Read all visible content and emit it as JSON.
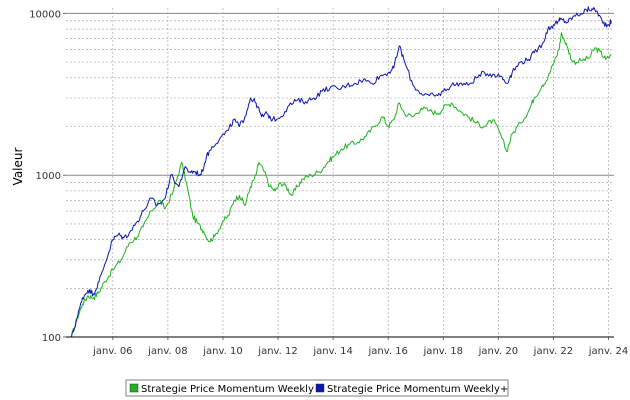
{
  "chart_data": {
    "type": "line",
    "title": "",
    "xlabel": "",
    "ylabel": "Valeur",
    "y_scale": "log",
    "ylim": [
      100,
      10800
    ],
    "xlim": [
      2004.3,
      2024.2
    ],
    "grid": true,
    "legend_position": "bottom",
    "x_tick_labels": [
      {
        "x": 2006,
        "label": "janv. 06"
      },
      {
        "x": 2008,
        "label": "janv. 08"
      },
      {
        "x": 2010,
        "label": "janv. 10"
      },
      {
        "x": 2012,
        "label": "janv. 12"
      },
      {
        "x": 2014,
        "label": "janv. 14"
      },
      {
        "x": 2016,
        "label": "janv. 16"
      },
      {
        "x": 2018,
        "label": "janv. 18"
      },
      {
        "x": 2020,
        "label": "janv. 20"
      },
      {
        "x": 2022,
        "label": "janv. 22"
      },
      {
        "x": 2024,
        "label": "janv. 24"
      }
    ],
    "y_tick_labels": [
      {
        "y": 100,
        "label": "100"
      },
      {
        "y": 1000,
        "label": "1000"
      },
      {
        "y": 10000,
        "label": "10000"
      }
    ],
    "series": [
      {
        "name": "Strategie Price Momentum Weekly",
        "color": "#1fb31f",
        "points": [
          [
            2004.5,
            100
          ],
          [
            2004.7,
            130
          ],
          [
            2004.9,
            160
          ],
          [
            2005.1,
            180
          ],
          [
            2005.3,
            175
          ],
          [
            2005.5,
            190
          ],
          [
            2005.7,
            220
          ],
          [
            2006.0,
            260
          ],
          [
            2006.3,
            300
          ],
          [
            2006.6,
            380
          ],
          [
            2006.9,
            420
          ],
          [
            2007.1,
            480
          ],
          [
            2007.4,
            600
          ],
          [
            2007.7,
            700
          ],
          [
            2007.9,
            620
          ],
          [
            2008.2,
            800
          ],
          [
            2008.5,
            1200
          ],
          [
            2008.7,
            850
          ],
          [
            2008.9,
            560
          ],
          [
            2009.1,
            500
          ],
          [
            2009.3,
            450
          ],
          [
            2009.5,
            390
          ],
          [
            2009.7,
            420
          ],
          [
            2010.0,
            520
          ],
          [
            2010.2,
            560
          ],
          [
            2010.4,
            700
          ],
          [
            2010.6,
            750
          ],
          [
            2010.8,
            650
          ],
          [
            2011.0,
            850
          ],
          [
            2011.2,
            1000
          ],
          [
            2011.3,
            1200
          ],
          [
            2011.5,
            1050
          ],
          [
            2011.7,
            850
          ],
          [
            2011.9,
            800
          ],
          [
            2012.1,
            900
          ],
          [
            2012.3,
            850
          ],
          [
            2012.5,
            750
          ],
          [
            2012.7,
            850
          ],
          [
            2012.9,
            950
          ],
          [
            2013.2,
            1000
          ],
          [
            2013.5,
            1050
          ],
          [
            2013.8,
            1200
          ],
          [
            2014.0,
            1300
          ],
          [
            2014.3,
            1450
          ],
          [
            2014.6,
            1550
          ],
          [
            2014.9,
            1600
          ],
          [
            2015.2,
            1750
          ],
          [
            2015.5,
            2000
          ],
          [
            2015.8,
            2300
          ],
          [
            2016.0,
            2000
          ],
          [
            2016.2,
            2200
          ],
          [
            2016.4,
            2800
          ],
          [
            2016.6,
            2400
          ],
          [
            2016.9,
            2300
          ],
          [
            2017.2,
            2600
          ],
          [
            2017.5,
            2500
          ],
          [
            2017.8,
            2400
          ],
          [
            2018.0,
            2600
          ],
          [
            2018.3,
            2800
          ],
          [
            2018.6,
            2500
          ],
          [
            2018.9,
            2300
          ],
          [
            2019.2,
            2100
          ],
          [
            2019.5,
            2000
          ],
          [
            2019.8,
            2200
          ],
          [
            2020.1,
            1750
          ],
          [
            2020.3,
            1400
          ],
          [
            2020.5,
            1800
          ],
          [
            2020.8,
            2100
          ],
          [
            2021.1,
            2500
          ],
          [
            2021.3,
            3000
          ],
          [
            2021.6,
            3600
          ],
          [
            2021.8,
            4000
          ],
          [
            2022.0,
            4900
          ],
          [
            2022.2,
            6000
          ],
          [
            2022.3,
            7600
          ],
          [
            2022.5,
            6200
          ],
          [
            2022.7,
            5000
          ],
          [
            2023.0,
            5100
          ],
          [
            2023.3,
            5300
          ],
          [
            2023.5,
            6100
          ],
          [
            2023.7,
            5800
          ],
          [
            2023.9,
            5200
          ],
          [
            2024.1,
            5500
          ]
        ]
      },
      {
        "name": "Strategie Price Momentum Weekly+",
        "color": "#0a16b0",
        "points": [
          [
            2004.5,
            100
          ],
          [
            2004.7,
            130
          ],
          [
            2004.9,
            175
          ],
          [
            2005.1,
            195
          ],
          [
            2005.3,
            185
          ],
          [
            2005.5,
            220
          ],
          [
            2005.7,
            280
          ],
          [
            2006.0,
            400
          ],
          [
            2006.2,
            430
          ],
          [
            2006.4,
            410
          ],
          [
            2006.6,
            440
          ],
          [
            2006.9,
            520
          ],
          [
            2007.1,
            600
          ],
          [
            2007.4,
            720
          ],
          [
            2007.6,
            650
          ],
          [
            2007.9,
            720
          ],
          [
            2008.1,
            1000
          ],
          [
            2008.4,
            850
          ],
          [
            2008.6,
            1100
          ],
          [
            2008.8,
            1050
          ],
          [
            2009.0,
            1050
          ],
          [
            2009.2,
            1000
          ],
          [
            2009.4,
            1300
          ],
          [
            2009.6,
            1500
          ],
          [
            2009.9,
            1700
          ],
          [
            2010.2,
            1900
          ],
          [
            2010.4,
            2200
          ],
          [
            2010.6,
            2000
          ],
          [
            2010.8,
            2300
          ],
          [
            2011.0,
            3000
          ],
          [
            2011.2,
            2800
          ],
          [
            2011.4,
            2300
          ],
          [
            2011.6,
            2400
          ],
          [
            2011.8,
            2200
          ],
          [
            2012.1,
            2300
          ],
          [
            2012.4,
            2700
          ],
          [
            2012.7,
            2900
          ],
          [
            2013.0,
            2850
          ],
          [
            2013.3,
            3000
          ],
          [
            2013.6,
            3300
          ],
          [
            2013.9,
            3500
          ],
          [
            2014.2,
            3400
          ],
          [
            2014.5,
            3600
          ],
          [
            2014.8,
            3700
          ],
          [
            2015.1,
            3900
          ],
          [
            2015.4,
            3700
          ],
          [
            2015.7,
            4100
          ],
          [
            2016.0,
            4300
          ],
          [
            2016.2,
            4600
          ],
          [
            2016.4,
            6300
          ],
          [
            2016.6,
            5000
          ],
          [
            2016.9,
            3600
          ],
          [
            2017.2,
            3200
          ],
          [
            2017.5,
            3100
          ],
          [
            2017.8,
            3100
          ],
          [
            2018.0,
            3300
          ],
          [
            2018.3,
            3600
          ],
          [
            2018.6,
            3700
          ],
          [
            2018.9,
            3600
          ],
          [
            2019.2,
            4000
          ],
          [
            2019.5,
            4300
          ],
          [
            2019.8,
            4200
          ],
          [
            2020.1,
            4100
          ],
          [
            2020.3,
            3700
          ],
          [
            2020.5,
            4300
          ],
          [
            2020.8,
            5000
          ],
          [
            2021.1,
            5200
          ],
          [
            2021.3,
            5700
          ],
          [
            2021.6,
            6500
          ],
          [
            2021.8,
            8000
          ],
          [
            2022.0,
            8500
          ],
          [
            2022.2,
            9000
          ],
          [
            2022.3,
            9200
          ],
          [
            2022.5,
            8800
          ],
          [
            2022.7,
            9500
          ],
          [
            2023.0,
            10000
          ],
          [
            2023.2,
            10500
          ],
          [
            2023.4,
            10700
          ],
          [
            2023.6,
            10200
          ],
          [
            2023.8,
            8700
          ],
          [
            2024.0,
            8500
          ],
          [
            2024.1,
            9000
          ]
        ]
      }
    ]
  }
}
